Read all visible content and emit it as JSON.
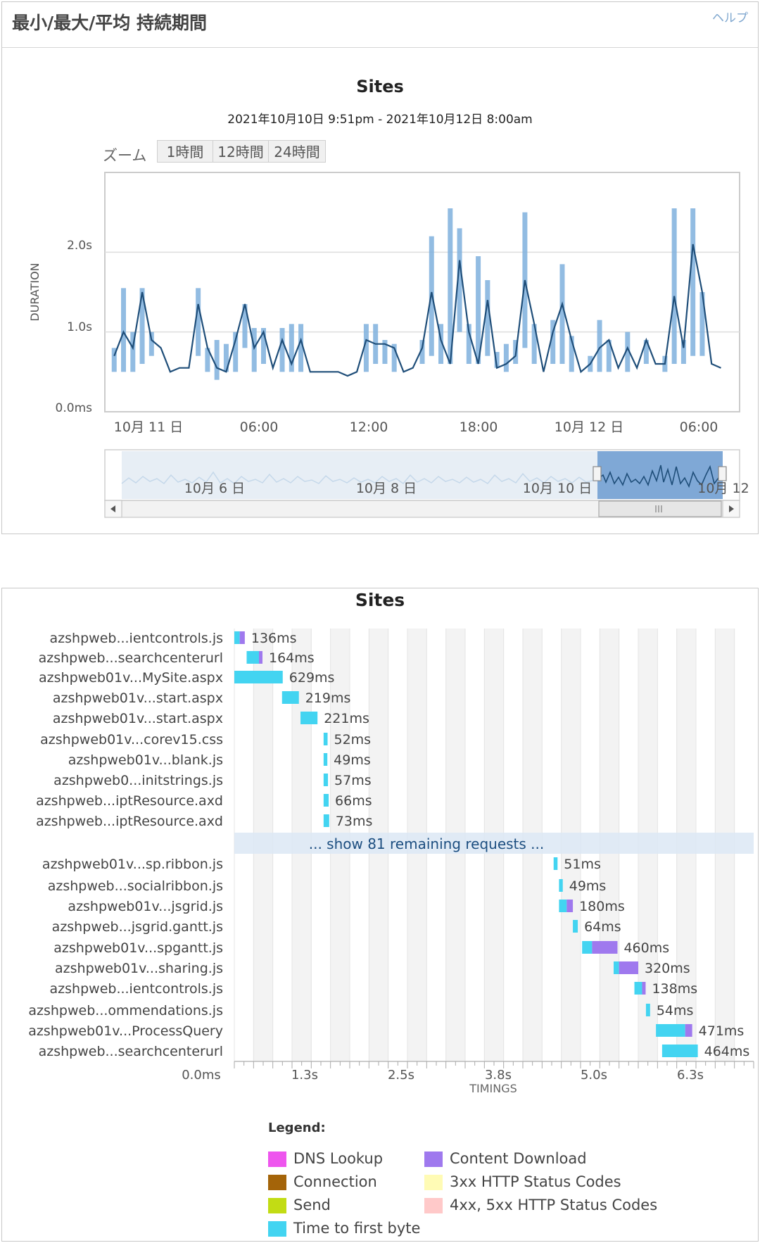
{
  "header": {
    "title": "最小/最大/平均 持続期間",
    "help": "ヘルプ"
  },
  "top_chart": {
    "title": "Sites",
    "date_range": "2021年10月10日 9:51pm - 2021年10月12日 8:00am",
    "zoom": {
      "label": "ズーム",
      "buttons": [
        "1時間",
        "12時間",
        "24時間"
      ]
    },
    "ylabel": "DURATION",
    "yticks": [
      "2.0s",
      "1.0s",
      "0.0ms"
    ],
    "xticks": [
      "10月 11 日",
      "06:00",
      "12:00",
      "18:00",
      "10月 12 日",
      "06:00"
    ],
    "navigator_labels": [
      "10月 6 日",
      "10月 8 日",
      "10月 10 日",
      "10月 12"
    ],
    "colors": {
      "line": "#1f4e79",
      "bar": "#7fb0dd",
      "grid": "#dddddd"
    }
  },
  "bottom_chart": {
    "title": "Sites",
    "show_more": "... show 81 remaining requests ...",
    "xlabel": "TIMINGS",
    "xticks": [
      "0.0ms",
      "1.3s",
      "2.5s",
      "3.8s",
      "5.0s",
      "6.3s"
    ],
    "legend_title": "Legend:",
    "legend": [
      {
        "label": "DNS Lookup",
        "color": "#ee55ee"
      },
      {
        "label": "Content Download",
        "color": "#9f79ee"
      },
      {
        "label": "Connection",
        "color": "#a46409"
      },
      {
        "label": "3xx HTTP Status Codes",
        "color": "#fffbb5"
      },
      {
        "label": "Send",
        "color": "#c2dc14"
      },
      {
        "label": "4xx, 5xx HTTP Status Codes",
        "color": "#ffc9c9"
      },
      {
        "label": "Time to first byte",
        "color": "#43d4f1"
      }
    ]
  },
  "chart_data": [
    {
      "type": "line",
      "title": "Sites",
      "ylabel": "DURATION",
      "ylim": [
        0,
        3.0
      ],
      "yunit": "s",
      "grid": true,
      "note_x": "x in hours from 10月 11 日 00:00",
      "series": [
        {
          "x": [
            -0.5,
            0,
            0.5,
            1,
            1.5,
            2,
            2.5,
            3,
            3.5,
            4,
            4.5,
            5,
            5.5,
            6,
            6.5,
            7,
            7.5,
            8,
            8.5,
            9,
            9.5,
            10,
            10.5,
            11,
            11.5,
            12,
            12.5,
            13,
            13.5,
            14,
            14.5,
            15,
            15.5,
            16,
            16.5,
            17,
            17.5,
            18,
            18.5,
            19,
            19.5,
            20,
            20.5,
            21,
            21.5,
            22,
            22.5,
            23,
            23.5,
            24,
            24.5,
            25,
            25.5,
            26,
            26.5,
            27,
            27.5,
            28,
            28.5,
            29,
            29.5,
            30,
            30.5,
            31,
            31.5,
            32
          ],
          "y": [
            0.7,
            1.0,
            0.8,
            1.5,
            0.9,
            0.8,
            0.5,
            0.55,
            0.55,
            1.35,
            0.8,
            0.55,
            0.5,
            0.9,
            1.35,
            0.8,
            1.0,
            0.55,
            0.9,
            0.6,
            0.9,
            0.5,
            0.5,
            0.5,
            0.5,
            0.45,
            0.5,
            0.9,
            0.85,
            0.85,
            0.8,
            0.5,
            0.55,
            0.8,
            1.5,
            0.9,
            0.6,
            1.9,
            1.0,
            0.6,
            1.4,
            0.55,
            0.6,
            0.7,
            1.65,
            1.1,
            0.5,
            1.0,
            1.35,
            0.9,
            0.5,
            0.6,
            0.8,
            0.9,
            0.55,
            0.8,
            0.55,
            0.9,
            0.6,
            0.6,
            1.45,
            0.8,
            2.1,
            1.5,
            0.6,
            0.55
          ]
        },
        {
          "x": [
            -0.5,
            0,
            0.5,
            1,
            1.5,
            2,
            2.5,
            3,
            3.5,
            4,
            4.5,
            5,
            5.5,
            6,
            6.5,
            7,
            7.5,
            8,
            8.5,
            9,
            9.5,
            10,
            10.5,
            11,
            11.5,
            12,
            12.5,
            13,
            13.5,
            14,
            14.5,
            15,
            15.5,
            16,
            16.5,
            17,
            17.5,
            18,
            18.5,
            19,
            19.5,
            20,
            20.5,
            21,
            21.5,
            22,
            22.5,
            23,
            23.5,
            24,
            24.5,
            25,
            25.5,
            26,
            26.5,
            27,
            27.5,
            28,
            28.5,
            29,
            29.5,
            30,
            30.5,
            31,
            31.5,
            32
          ],
          "y": [
            0.5,
            0.5,
            0.5,
            0.6,
            0.7,
            0.8,
            0.5,
            0.55,
            0.55,
            0.7,
            0.5,
            0.4,
            0.5,
            0.5,
            0.8,
            0.5,
            0.6,
            0.5,
            0.5,
            0.5,
            0.5,
            0.5,
            0.5,
            0.5,
            0.5,
            0.45,
            0.5,
            0.5,
            0.6,
            0.6,
            0.5,
            0.5,
            0.55,
            0.6,
            0.7,
            0.6,
            0.6,
            1.0,
            0.6,
            0.6,
            0.7,
            0.55,
            0.5,
            0.6,
            0.8,
            0.6,
            0.5,
            0.6,
            0.6,
            0.5,
            0.5,
            0.5,
            0.5,
            0.5,
            0.5,
            0.5,
            0.5,
            0.6,
            0.5,
            0.5,
            0.6,
            0.6,
            0.7,
            0.7,
            0.6,
            0.55
          ]
        },
        {
          "x": [
            -0.5,
            0,
            0.5,
            1,
            1.5,
            2,
            2.5,
            3,
            3.5,
            4,
            4.5,
            5,
            5.5,
            6,
            6.5,
            7,
            7.5,
            8,
            8.5,
            9,
            9.5,
            10,
            10.5,
            11,
            11.5,
            12,
            12.5,
            13,
            13.5,
            14,
            14.5,
            15,
            15.5,
            16,
            16.5,
            17,
            17.5,
            18,
            18.5,
            19,
            19.5,
            20,
            20.5,
            21,
            21.5,
            22,
            22.5,
            23,
            23.5,
            24,
            24.5,
            25,
            25.5,
            26,
            26.5,
            27,
            27.5,
            28,
            28.5,
            29,
            29.5,
            30,
            30.5,
            31,
            31.5,
            32
          ],
          "y": [
            0.8,
            1.55,
            1.0,
            1.55,
            1.0,
            0.8,
            0.5,
            0.55,
            0.55,
            1.55,
            0.8,
            0.9,
            0.85,
            1.0,
            1.35,
            1.05,
            1.05,
            0.55,
            1.05,
            1.1,
            1.1,
            0.5,
            0.5,
            0.5,
            0.5,
            0.45,
            0.5,
            1.1,
            1.1,
            0.9,
            0.85,
            0.5,
            0.6,
            0.9,
            2.2,
            1.1,
            2.55,
            2.3,
            1.1,
            1.95,
            1.65,
            0.75,
            0.85,
            0.9,
            2.5,
            1.1,
            0.5,
            1.15,
            1.85,
            0.95,
            0.5,
            0.7,
            1.15,
            0.9,
            0.55,
            1.0,
            0.6,
            0.9,
            0.6,
            0.7,
            2.55,
            0.9,
            2.55,
            1.5,
            0.6,
            0.55
          ]
        }
      ]
    },
    {
      "type": "bar",
      "title": "Sites",
      "xlabel": "TIMINGS",
      "xunit": "s",
      "xlim": [
        0,
        6.75
      ],
      "categories": [
        "azshpweb...ientcontrols.js",
        "azshpweb...searchcenterurl",
        "azshpweb01v...MySite.aspx",
        "azshpweb01v...start.aspx",
        "azshpweb01v...start.aspx",
        "azshpweb01v...corev15.css",
        "azshpweb01v...blank.js",
        "azshpweb0...initstrings.js",
        "azshpweb...iptResource.axd",
        "azshpweb...iptResource.axd",
        "azshpweb01v...sp.ribbon.js",
        "azshpweb...socialribbon.js",
        "azshpweb01v...jsgrid.js",
        "azshpweb...jsgrid.gantt.js",
        "azshpweb01v...spgantt.js",
        "azshpweb01v...sharing.js",
        "azshpweb...ientcontrols.js",
        "azshpweb...ommendations.js",
        "azshpweb01v...ProcessQuery",
        "azshpweb...searchcenterurl"
      ],
      "labels": [
        "136ms",
        "164ms",
        "629ms",
        "219ms",
        "221ms",
        "52ms",
        "49ms",
        "57ms",
        "66ms",
        "73ms",
        "51ms",
        "49ms",
        "180ms",
        "64ms",
        "460ms",
        "320ms",
        "138ms",
        "54ms",
        "471ms",
        "464ms"
      ],
      "start": [
        0.0,
        0.16,
        0.0,
        0.62,
        0.86,
        1.16,
        1.16,
        1.16,
        1.16,
        1.16,
        4.15,
        4.22,
        4.22,
        4.4,
        4.52,
        4.93,
        5.2,
        5.35,
        5.48,
        5.56
      ],
      "series": [
        {
          "name": "Time to first byte",
          "values": [
            0.07,
            0.16,
            0.629,
            0.219,
            0.221,
            0.052,
            0.049,
            0.057,
            0.066,
            0.073,
            0.051,
            0.049,
            0.1,
            0.064,
            0.13,
            0.07,
            0.1,
            0.054,
            0.38,
            0.464
          ]
        },
        {
          "name": "Content Download",
          "values": [
            0.066,
            0.004,
            0,
            0,
            0,
            0,
            0,
            0,
            0,
            0,
            0,
            0,
            0.08,
            0,
            0.33,
            0.25,
            0.038,
            0,
            0.091,
            0
          ]
        }
      ],
      "legend_position": "bottom",
      "grid": true
    }
  ]
}
